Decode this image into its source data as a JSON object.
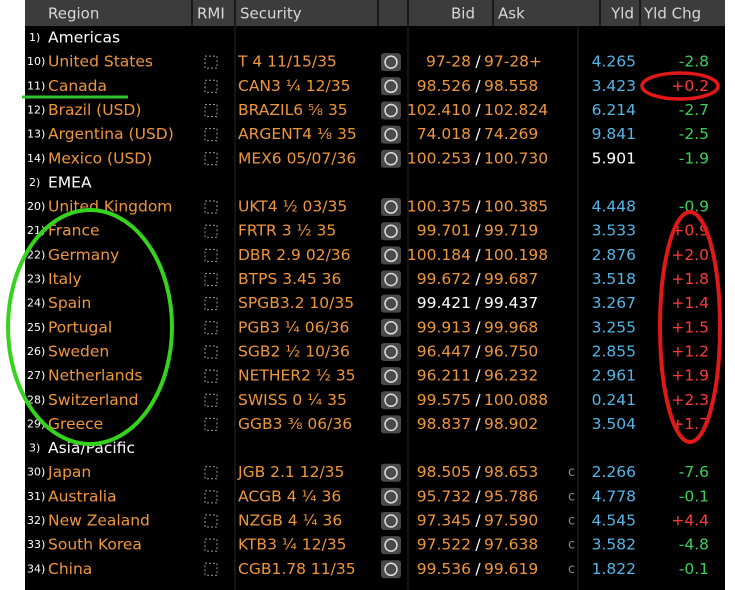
{
  "header": {
    "region": "Region",
    "rmi": "RMI",
    "security": "Security",
    "bid": "Bid",
    "ask": "Ask",
    "yld": "Yld",
    "yld_chg": "Yld Chg",
    "price_separator": "/"
  },
  "groups": [
    {
      "num": "1)",
      "label": "Americas",
      "rows": [
        {
          "num": "10)",
          "region": "United States",
          "security": "T 4 11/15/35",
          "bid": "97-28",
          "ask": "97-28+",
          "yld": "4.265",
          "yld_chg": "-2.8"
        },
        {
          "num": "11)",
          "region": "Canada",
          "security": "CAN3 ¼ 12/35",
          "bid": "98.526",
          "ask": "98.558",
          "yld": "3.423",
          "yld_chg": "+0.2"
        },
        {
          "num": "12)",
          "region": "Brazil (USD)",
          "security": "BRAZIL6 ⅝ 35",
          "bid": "102.410",
          "ask": "102.824",
          "yld": "6.214",
          "yld_chg": "-2.7"
        },
        {
          "num": "13)",
          "region": "Argentina (USD)",
          "security": "ARGENT4 ⅛ 35",
          "bid": "74.018",
          "ask": "74.269",
          "yld": "9.841",
          "yld_chg": "-2.5"
        },
        {
          "num": "14)",
          "region": "Mexico (USD)",
          "security": "MEX6 05/07/36",
          "bid": "100.253",
          "ask": "100.730",
          "yld": "5.901",
          "yld_chg": "-1.9"
        }
      ]
    },
    {
      "num": "2)",
      "label": "EMEA",
      "rows": [
        {
          "num": "20)",
          "region": "United Kingdom",
          "security": "UKT4 ½ 03/35",
          "bid": "100.375",
          "ask": "100.385",
          "yld": "4.448",
          "yld_chg": "-0.9"
        },
        {
          "num": "21)",
          "region": "France",
          "security": "FRTR 3 ½ 35",
          "bid": "99.701",
          "ask": "99.719",
          "yld": "3.533",
          "yld_chg": "+0.9"
        },
        {
          "num": "22)",
          "region": "Germany",
          "security": "DBR 2.9 02/36",
          "bid": "100.184",
          "ask": "100.198",
          "yld": "2.876",
          "yld_chg": "+2.0"
        },
        {
          "num": "23)",
          "region": "Italy",
          "security": "BTPS 3.45 36",
          "bid": "99.672",
          "ask": "99.687",
          "yld": "3.518",
          "yld_chg": "+1.8"
        },
        {
          "num": "24)",
          "region": "Spain",
          "security": "SPGB3.2 10/35",
          "bid": "99.421",
          "ask": "99.437",
          "yld": "3.267",
          "yld_chg": "+1.4"
        },
        {
          "num": "25)",
          "region": "Portugal",
          "security": "PGB3 ¼ 06/36",
          "bid": "99.913",
          "ask": "99.968",
          "yld": "3.255",
          "yld_chg": "+1.5"
        },
        {
          "num": "26)",
          "region": "Sweden",
          "security": "SGB2 ½ 10/36",
          "bid": "96.447",
          "ask": "96.750",
          "yld": "2.855",
          "yld_chg": "+1.2"
        },
        {
          "num": "27)",
          "region": "Netherlands",
          "security": "NETHER2 ½ 35",
          "bid": "96.211",
          "ask": "96.232",
          "yld": "2.961",
          "yld_chg": "+1.9"
        },
        {
          "num": "28)",
          "region": "Switzerland",
          "security": "SWISS 0 ¼ 35",
          "bid": "99.575",
          "ask": "100.088",
          "yld": "0.241",
          "yld_chg": "+2.3"
        },
        {
          "num": "29)",
          "region": "Greece",
          "security": "GGB3 ⅜ 06/36",
          "bid": "98.837",
          "ask": "98.902",
          "yld": "3.504",
          "yld_chg": "+1.7"
        }
      ]
    },
    {
      "num": "3)",
      "label": "Asia/Pacific",
      "rows": [
        {
          "num": "30)",
          "region": "Japan",
          "security": "JGB 2.1 12/35",
          "bid": "98.505",
          "ask": "98.653",
          "cond": "c",
          "yld": "2.266",
          "yld_chg": "-7.6"
        },
        {
          "num": "31)",
          "region": "Australia",
          "security": "ACGB 4 ¼ 36",
          "bid": "95.732",
          "ask": "95.786",
          "cond": "c",
          "yld": "4.778",
          "yld_chg": "-0.1"
        },
        {
          "num": "32)",
          "region": "New Zealand",
          "security": "NZGB 4 ¼ 36",
          "bid": "97.345",
          "ask": "97.590",
          "cond": "c",
          "yld": "4.545",
          "yld_chg": "+4.4"
        },
        {
          "num": "33)",
          "region": "South Korea",
          "security": "KTB3 ¼ 12/35",
          "bid": "97.522",
          "ask": "97.638",
          "cond": "c",
          "yld": "3.582",
          "yld_chg": "-4.8"
        },
        {
          "num": "34)",
          "region": "China",
          "security": "CGB1.78 11/35",
          "bid": "99.536",
          "ask": "99.619",
          "cond": "c",
          "yld": "1.822",
          "yld_chg": "-0.1"
        }
      ]
    }
  ]
}
